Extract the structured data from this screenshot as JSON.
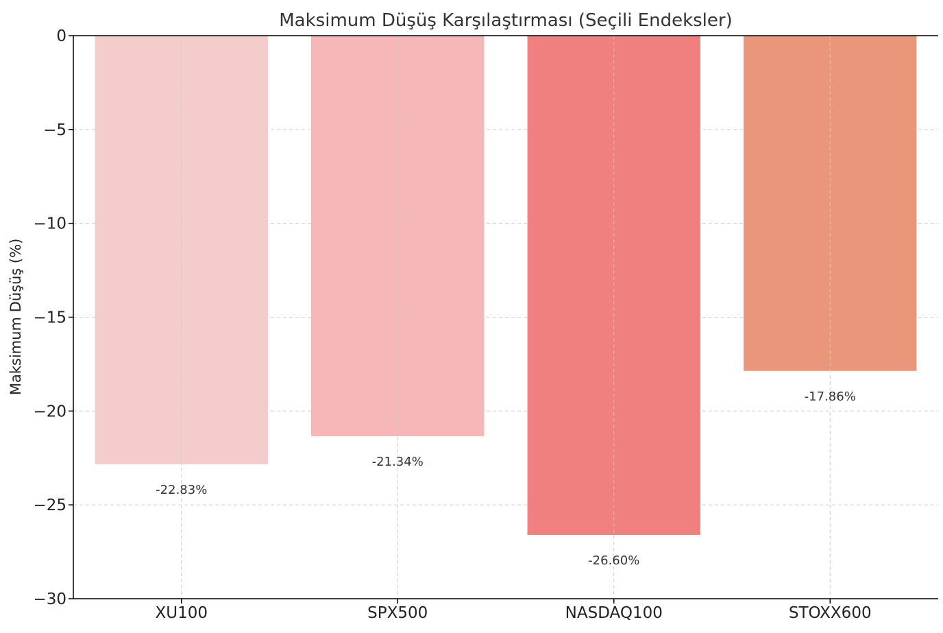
{
  "chart_data": {
    "type": "bar",
    "title": "Maksimum Düşüş Karşılaştırması (Seçili Endeksler)",
    "xlabel": "",
    "ylabel": "Maksimum Düşüş (%)",
    "categories": [
      "XU100",
      "SPX500",
      "NASDAQ100",
      "STOXX600"
    ],
    "values": [
      -22.83,
      -21.34,
      -26.6,
      -17.86
    ],
    "data_labels": [
      "-22.83%",
      "-21.34%",
      "-26.60%",
      "-17.86%"
    ],
    "colors": [
      "#f4cccc",
      "#f5b7b8",
      "#f08080",
      "#e9967a"
    ],
    "ylim": [
      -30,
      0
    ],
    "yticks": [
      0,
      -5,
      -10,
      -15,
      -20,
      -25,
      -30
    ],
    "ytick_labels": [
      "0",
      "−5",
      "−10",
      "−15",
      "−20",
      "−25",
      "−30"
    ],
    "grid": true
  }
}
